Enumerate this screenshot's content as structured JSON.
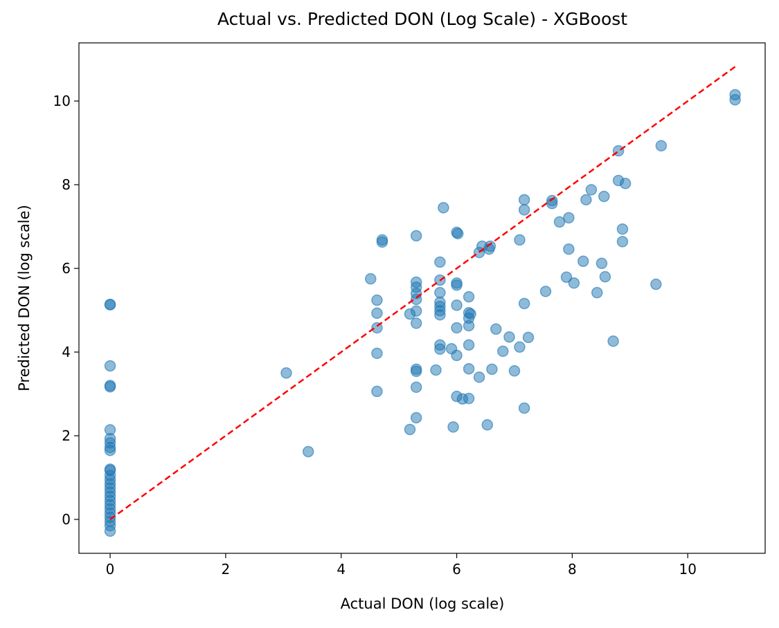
{
  "chart_data": {
    "type": "scatter",
    "title": "Actual vs. Predicted DON (Log Scale) - XGBoost",
    "x_label": "Actual DON (log scale)",
    "y_label": "Predicted DON (log scale)",
    "color": "#1f77b4",
    "x": [
      0,
      0,
      0,
      0,
      0,
      0,
      0,
      0,
      0,
      0,
      0,
      0,
      0,
      0,
      0,
      0,
      0,
      0,
      0,
      0,
      0,
      0,
      0,
      0,
      0,
      0,
      3.05,
      3.43,
      4.51,
      4.62,
      4.62,
      4.62,
      4.62,
      4.62,
      4.71,
      4.71,
      5.19,
      5.19,
      5.3,
      5.3,
      5.3,
      5.3,
      5.3,
      5.3,
      5.3,
      5.3,
      5.3,
      5.3,
      5.3,
      5.71,
      5.71,
      5.71,
      5.71,
      5.71,
      5.71,
      5.71,
      5.71,
      5.71,
      5.64,
      5.77,
      5.91,
      5.94,
      6.0,
      6.02,
      6.0,
      6.0,
      6.0,
      6.0,
      6.0,
      6.0,
      6.1,
      6.21,
      6.21,
      6.21,
      6.24,
      6.21,
      6.21,
      6.21,
      6.21,
      6.39,
      6.39,
      6.44,
      6.56,
      6.58,
      6.53,
      6.61,
      6.68,
      6.8,
      6.91,
      7.0,
      7.09,
      7.09,
      7.17,
      7.17,
      7.17,
      7.17,
      7.24,
      7.54,
      7.65,
      7.65,
      7.78,
      7.94,
      7.94,
      7.9,
      8.03,
      8.19,
      8.24,
      8.33,
      8.43,
      8.51,
      8.55,
      8.57,
      8.71,
      8.8,
      8.8,
      8.87,
      8.87,
      8.92,
      9.54,
      9.45,
      10.82,
      10.82
    ],
    "values": [
      5.14,
      5.13,
      3.67,
      3.2,
      3.17,
      2.14,
      1.93,
      1.83,
      1.72,
      1.65,
      1.2,
      1.17,
      1.05,
      0.95,
      0.85,
      0.75,
      0.65,
      0.55,
      0.45,
      0.35,
      0.25,
      0.15,
      0.05,
      -0.05,
      -0.15,
      -0.28,
      3.5,
      1.62,
      5.75,
      5.24,
      4.93,
      4.58,
      3.97,
      3.06,
      6.68,
      6.63,
      4.91,
      2.15,
      6.78,
      5.67,
      5.55,
      5.4,
      5.26,
      4.98,
      4.69,
      3.59,
      3.54,
      3.16,
      2.43,
      6.15,
      5.72,
      5.42,
      5.19,
      5.09,
      4.99,
      4.89,
      4.17,
      4.07,
      3.57,
      7.45,
      4.08,
      2.21,
      6.86,
      6.83,
      5.65,
      5.6,
      5.12,
      4.58,
      3.92,
      2.94,
      2.88,
      2.89,
      5.32,
      4.94,
      4.91,
      4.81,
      4.63,
      4.17,
      3.6,
      3.4,
      6.38,
      6.53,
      6.46,
      6.53,
      2.26,
      3.59,
      4.55,
      4.02,
      4.36,
      3.55,
      4.12,
      6.68,
      7.64,
      7.4,
      5.16,
      2.66,
      4.35,
      5.45,
      7.62,
      7.55,
      7.11,
      7.21,
      6.46,
      5.79,
      5.65,
      6.17,
      7.64,
      7.88,
      5.42,
      6.12,
      7.72,
      5.8,
      4.26,
      8.81,
      8.1,
      6.94,
      6.64,
      8.03,
      8.93,
      5.62,
      10.15,
      10.03
    ],
    "reference_line": {
      "x": [
        0,
        10.82
      ],
      "y": [
        0,
        10.82
      ],
      "color": "#ff0000",
      "dashed": true
    },
    "xlim": [
      -0.54,
      11.34
    ],
    "ylim": [
      -0.81,
      11.39
    ],
    "xticks": [
      0,
      2,
      4,
      6,
      8,
      10
    ],
    "yticks": [
      0,
      2,
      4,
      6,
      8,
      10
    ],
    "grid": false
  }
}
